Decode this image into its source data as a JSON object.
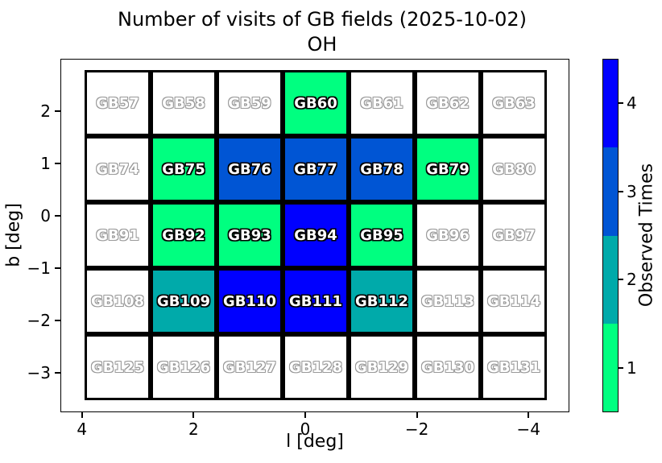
{
  "chart_data": {
    "type": "heatmap",
    "title": "Number of visits of GB fields (2025-10-02)",
    "subtitle": "OH",
    "xlabel": "l [deg]",
    "ylabel": "b [deg]",
    "x_axis_inverted": true,
    "x_ticks": [
      4,
      2,
      0,
      -2,
      -4
    ],
    "y_ticks": [
      2,
      1,
      0,
      -1,
      -2,
      -3
    ],
    "grid": {
      "columns": 7,
      "rows": [
        {
          "labels": [
            "GB57",
            "GB58",
            "GB59",
            "GB60",
            "GB61",
            "GB62",
            "GB63"
          ],
          "visits": [
            0,
            0,
            0,
            1,
            0,
            0,
            0
          ]
        },
        {
          "labels": [
            "GB74",
            "GB75",
            "GB76",
            "GB77",
            "GB78",
            "GB79",
            "GB80"
          ],
          "visits": [
            0,
            1,
            3,
            3,
            3,
            1,
            0
          ]
        },
        {
          "labels": [
            "GB91",
            "GB92",
            "GB93",
            "GB94",
            "GB95",
            "GB96",
            "GB97"
          ],
          "visits": [
            0,
            1,
            1,
            4,
            1,
            0,
            0
          ]
        },
        {
          "labels": [
            "GB108",
            "GB109",
            "GB110",
            "GB111",
            "GB112",
            "GB113",
            "GB114"
          ],
          "visits": [
            0,
            2,
            4,
            4,
            2,
            0,
            0
          ]
        },
        {
          "labels": [
            "GB125",
            "GB126",
            "GB127",
            "GB128",
            "GB129",
            "GB130",
            "GB131"
          ],
          "visits": [
            0,
            0,
            0,
            0,
            0,
            0,
            0
          ]
        }
      ]
    },
    "visit_colors": {
      "0": "#FFFFFF",
      "1": "#00FF80",
      "2": "#00AAAA",
      "3": "#0055D4",
      "4": "#0000FF"
    },
    "label_outline_visited": "#000000",
    "label_outline_unvisited": "#999999",
    "label_fill": "#FFFFFF",
    "colorbar": {
      "label": "Observed Times",
      "ticks": [
        1,
        2,
        3,
        4
      ],
      "colors_bottom_to_top": [
        "#00FF80",
        "#00AAAA",
        "#0055D4",
        "#0000FF"
      ]
    },
    "legend_position": "right-colorbar",
    "grid_lines": "none"
  }
}
